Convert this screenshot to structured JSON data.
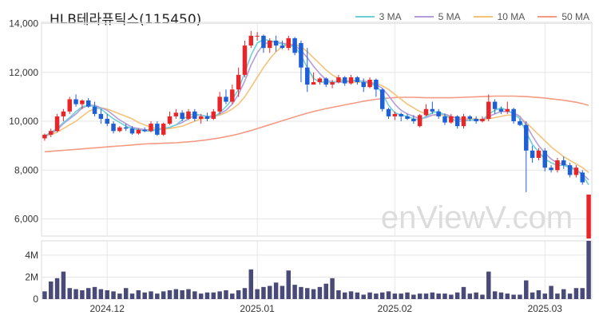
{
  "title": "HLB테라퓨틱스(115450)",
  "legend": [
    {
      "label": "3 MA",
      "color": "#6fd0d6"
    },
    {
      "label": "5 MA",
      "color": "#b39ddb"
    },
    {
      "label": "10 MA",
      "color": "#f5c27a"
    },
    {
      "label": "50 MA",
      "color": "#f59a85"
    }
  ],
  "watermark": "enViewV.com",
  "colors": {
    "up": "#e8262a",
    "down": "#1e5fd6",
    "volume": "#4a4a78",
    "grid": "#e6e6e6"
  },
  "chart_data": [
    {
      "type": "candlestick",
      "price_axis": {
        "ticks": [
          6000,
          8000,
          10000,
          12000,
          14000
        ],
        "labels": [
          "6,000",
          "8,000",
          "10,000",
          "12,000",
          "14,000"
        ],
        "ylim": [
          5300,
          14050
        ]
      },
      "x_tick_labels": [
        {
          "label": "2024.12",
          "index": 10
        },
        {
          "label": "2025.01",
          "index": 34
        },
        {
          "label": "2025.02",
          "index": 56
        },
        {
          "label": "2025.03",
          "index": 80
        }
      ],
      "ohlc": [
        [
          9300,
          9500,
          9200,
          9450
        ],
        [
          9450,
          9700,
          9350,
          9600
        ],
        [
          9600,
          10300,
          9550,
          10200
        ],
        [
          10200,
          10500,
          10000,
          10400
        ],
        [
          10400,
          11000,
          10300,
          10900
        ],
        [
          10900,
          11100,
          10600,
          10700
        ],
        [
          10700,
          10900,
          10500,
          10850
        ],
        [
          10850,
          10950,
          10550,
          10600
        ],
        [
          10600,
          10800,
          10200,
          10300
        ],
        [
          10300,
          10500,
          9900,
          10100
        ],
        [
          10100,
          10300,
          9800,
          9900
        ],
        [
          9900,
          10000,
          9500,
          9600
        ],
        [
          9600,
          9800,
          9550,
          9750
        ],
        [
          9750,
          9900,
          9600,
          9700
        ],
        [
          9700,
          9800,
          9450,
          9500
        ],
        [
          9500,
          9700,
          9450,
          9650
        ],
        [
          9650,
          9750,
          9550,
          9600
        ],
        [
          9600,
          10000,
          9550,
          9900
        ],
        [
          9900,
          10000,
          9400,
          9450
        ],
        [
          9450,
          9950,
          9400,
          9900
        ],
        [
          9900,
          10400,
          9850,
          10200
        ],
        [
          10200,
          10500,
          10100,
          10350
        ],
        [
          10350,
          10450,
          10000,
          10100
        ],
        [
          10100,
          10500,
          10050,
          10400
        ],
        [
          10400,
          10500,
          10000,
          10100
        ],
        [
          10100,
          10300,
          9900,
          10200
        ],
        [
          10200,
          10350,
          10000,
          10100
        ],
        [
          10100,
          10500,
          10050,
          10400
        ],
        [
          10400,
          11200,
          10300,
          11000
        ],
        [
          11000,
          11300,
          10700,
          10800
        ],
        [
          10800,
          11500,
          10700,
          11300
        ],
        [
          11300,
          12200,
          11000,
          11900
        ],
        [
          11900,
          13300,
          11800,
          13100
        ],
        [
          13100,
          13700,
          13000,
          13500
        ],
        [
          13500,
          13650,
          13300,
          13500
        ],
        [
          13500,
          13550,
          12800,
          13000
        ],
        [
          13000,
          13400,
          12800,
          13300
        ],
        [
          13300,
          13500,
          12850,
          13100
        ],
        [
          13100,
          13300,
          12950,
          13000
        ],
        [
          13000,
          13500,
          12900,
          13400
        ],
        [
          13400,
          13450,
          12700,
          12800
        ],
        [
          13200,
          13300,
          11600,
          12200
        ],
        [
          12200,
          13000,
          11200,
          11500
        ],
        [
          11500,
          12000,
          11500,
          11600
        ],
        [
          11600,
          11800,
          11500,
          11750
        ],
        [
          11750,
          11800,
          11400,
          11500
        ],
        [
          11500,
          11700,
          11350,
          11600
        ],
        [
          11600,
          11900,
          11550,
          11800
        ],
        [
          11800,
          11850,
          11450,
          11550
        ],
        [
          11550,
          11900,
          11500,
          11800
        ],
        [
          11800,
          11850,
          11500,
          11600
        ],
        [
          11600,
          11750,
          11200,
          11400
        ],
        [
          11400,
          11800,
          11350,
          11700
        ],
        [
          11700,
          11750,
          11000,
          11300
        ],
        [
          11300,
          11350,
          10400,
          10500
        ],
        [
          10500,
          10550,
          10100,
          10200
        ],
        [
          10200,
          10400,
          10050,
          10300
        ],
        [
          10300,
          10350,
          10000,
          10200
        ],
        [
          10200,
          10300,
          10050,
          10100
        ],
        [
          10100,
          10250,
          9900,
          10000
        ],
        [
          9800,
          10300,
          9750,
          10250
        ],
        [
          10250,
          10700,
          10200,
          10500
        ],
        [
          10500,
          10800,
          10300,
          10400
        ],
        [
          10400,
          10500,
          10100,
          10200
        ],
        [
          10200,
          10300,
          9850,
          9950
        ],
        [
          9950,
          10300,
          9900,
          10200
        ],
        [
          10200,
          10250,
          9700,
          9800
        ],
        [
          9800,
          10300,
          9700,
          10200
        ],
        [
          10200,
          10250,
          10000,
          10100
        ],
        [
          10100,
          10200,
          9900,
          10000
        ],
        [
          10000,
          10200,
          9950,
          10100
        ],
        [
          10100,
          11100,
          10000,
          10800
        ],
        [
          10800,
          10900,
          10300,
          10500
        ],
        [
          10500,
          10600,
          10300,
          10400
        ],
        [
          10400,
          10800,
          10300,
          10500
        ],
        [
          10500,
          10550,
          9900,
          10000
        ],
        [
          10000,
          10100,
          9800,
          9850
        ],
        [
          9850,
          10000,
          7100,
          8800
        ],
        [
          8800,
          9000,
          8300,
          8500
        ],
        [
          8500,
          8900,
          8400,
          8800
        ],
        [
          8800,
          8900,
          7950,
          8100
        ],
        [
          8100,
          8200,
          7900,
          8000
        ],
        [
          8000,
          8500,
          7900,
          8400
        ],
        [
          8400,
          8550,
          8050,
          8200
        ],
        [
          8200,
          8300,
          7700,
          7800
        ],
        [
          7800,
          8200,
          7700,
          8100
        ],
        [
          7900,
          8000,
          7400,
          7500
        ],
        [
          5200,
          7000,
          5200,
          7000
        ]
      ],
      "ma3": [
        9400,
        9550,
        9700,
        9950,
        10150,
        10400,
        10600,
        10650,
        10600,
        10500,
        10300,
        10100,
        9950,
        9800,
        9700,
        9650,
        9600,
        9600,
        9650,
        9700,
        9750,
        9850,
        10050,
        10250,
        10300,
        10250,
        10200,
        10150,
        10350,
        10600,
        10900,
        11300,
        12000,
        12700,
        13200,
        13350,
        13300,
        13250,
        13150,
        13100,
        13050,
        12700,
        12200,
        11750,
        11600,
        11600,
        11600,
        11650,
        11650,
        11650,
        11700,
        11600,
        11550,
        11450,
        11150,
        10650,
        10350,
        10250,
        10200,
        10100,
        10050,
        10200,
        10350,
        10400,
        10250,
        10100,
        10000,
        10000,
        10050,
        10050,
        10050,
        10300,
        10450,
        10550,
        10450,
        10300,
        10100,
        9550,
        9050,
        8750,
        8450,
        8300,
        8200,
        8200,
        8100,
        8000,
        7800,
        7400
      ],
      "ma5": [
        9400,
        9500,
        9650,
        9900,
        10100,
        10300,
        10550,
        10650,
        10650,
        10550,
        10450,
        10250,
        10050,
        9900,
        9750,
        9700,
        9650,
        9650,
        9650,
        9700,
        9750,
        9850,
        9950,
        10100,
        10250,
        10250,
        10200,
        10200,
        10300,
        10450,
        10700,
        11100,
        11650,
        12300,
        12800,
        13150,
        13250,
        13250,
        13200,
        13150,
        13100,
        12900,
        12600,
        12250,
        11950,
        11700,
        11600,
        11600,
        11600,
        11650,
        11650,
        11650,
        11600,
        11500,
        11350,
        11050,
        10700,
        10450,
        10300,
        10200,
        10100,
        10150,
        10250,
        10300,
        10300,
        10200,
        10100,
        10050,
        10050,
        10050,
        10050,
        10200,
        10300,
        10400,
        10400,
        10350,
        10200,
        9850,
        9400,
        9000,
        8700,
        8450,
        8300,
        8250,
        8150,
        8000,
        7850,
        7600
      ],
      "ma10": [
        9400,
        9450,
        9550,
        9700,
        9850,
        10000,
        10200,
        10400,
        10500,
        10550,
        10500,
        10400,
        10300,
        10200,
        10100,
        9950,
        9850,
        9750,
        9700,
        9700,
        9700,
        9750,
        9800,
        9900,
        10000,
        10100,
        10150,
        10200,
        10250,
        10350,
        10500,
        10700,
        11000,
        11400,
        11800,
        12200,
        12550,
        12850,
        13050,
        13150,
        13150,
        13050,
        12850,
        12600,
        12350,
        12100,
        11900,
        11750,
        11650,
        11600,
        11600,
        11600,
        11600,
        11550,
        11450,
        11300,
        11100,
        10900,
        10700,
        10550,
        10400,
        10300,
        10250,
        10250,
        10250,
        10200,
        10150,
        10100,
        10100,
        10100,
        10050,
        10100,
        10150,
        10200,
        10250,
        10250,
        10150,
        9950,
        9700,
        9450,
        9200,
        8950,
        8750,
        8550,
        8400,
        8250,
        8100,
        7900
      ],
      "ma50": [
        8750,
        8770,
        8790,
        8810,
        8830,
        8850,
        8870,
        8890,
        8910,
        8930,
        8950,
        8970,
        8990,
        9010,
        9030,
        9050,
        9070,
        9080,
        9090,
        9100,
        9110,
        9120,
        9140,
        9160,
        9180,
        9210,
        9240,
        9280,
        9320,
        9370,
        9420,
        9480,
        9550,
        9620,
        9700,
        9780,
        9860,
        9940,
        10020,
        10100,
        10180,
        10260,
        10330,
        10400,
        10460,
        10520,
        10570,
        10620,
        10670,
        10720,
        10770,
        10820,
        10860,
        10900,
        10930,
        10950,
        10970,
        10980,
        10980,
        10980,
        10970,
        10960,
        10960,
        10960,
        10960,
        10960,
        10970,
        10980,
        10990,
        11000,
        11010,
        11020,
        11030,
        11030,
        11030,
        11030,
        11020,
        11010,
        10990,
        10970,
        10950,
        10920,
        10890,
        10860,
        10820,
        10780,
        10720,
        10650
      ],
      "volume_axis": {
        "ticks": [
          0,
          2000000,
          4000000
        ],
        "labels": [
          "0",
          "2M",
          "4M"
        ],
        "ylim": [
          0,
          5300000
        ]
      },
      "volume": [
        700000,
        1600000,
        1900000,
        2500000,
        1000000,
        900000,
        800000,
        1000000,
        1100000,
        900000,
        800000,
        700000,
        500000,
        1000000,
        500000,
        800000,
        600000,
        700000,
        500000,
        700000,
        800000,
        900000,
        800000,
        900000,
        700000,
        500000,
        600000,
        600000,
        700000,
        800000,
        500000,
        800000,
        1000000,
        2700000,
        900000,
        1100000,
        1200000,
        1500000,
        1200000,
        2600000,
        1300000,
        1100000,
        1000000,
        900000,
        1100000,
        1400000,
        1900000,
        800000,
        600000,
        700000,
        600000,
        400000,
        600000,
        500000,
        600000,
        700000,
        500000,
        500000,
        600000,
        400000,
        500000,
        500000,
        600000,
        500000,
        500000,
        400000,
        600000,
        1100000,
        500000,
        600000,
        400000,
        2500000,
        700000,
        600000,
        500000,
        400000,
        400000,
        1700000,
        600000,
        800000,
        500000,
        1200000,
        500000,
        900000,
        500000,
        1000000,
        1000000,
        5300000
      ]
    }
  ]
}
